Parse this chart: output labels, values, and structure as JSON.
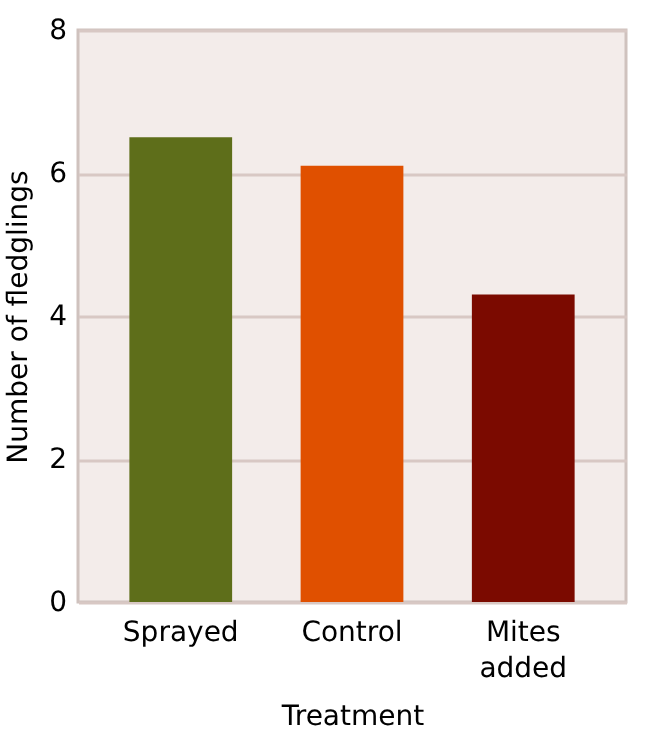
{
  "chart_data": {
    "type": "bar",
    "xlabel": "Treatment",
    "ylabel": "Number of fledglings",
    "categories": [
      "Sprayed",
      "Control",
      "Mites added"
    ],
    "values": [
      6.5,
      6.1,
      4.3
    ],
    "colors": [
      "#5e6e1a",
      "#e05000",
      "#7b0a00"
    ],
    "ylim": [
      0,
      8
    ],
    "yticks": [
      0,
      2,
      4,
      6,
      8
    ],
    "grid": "y"
  }
}
